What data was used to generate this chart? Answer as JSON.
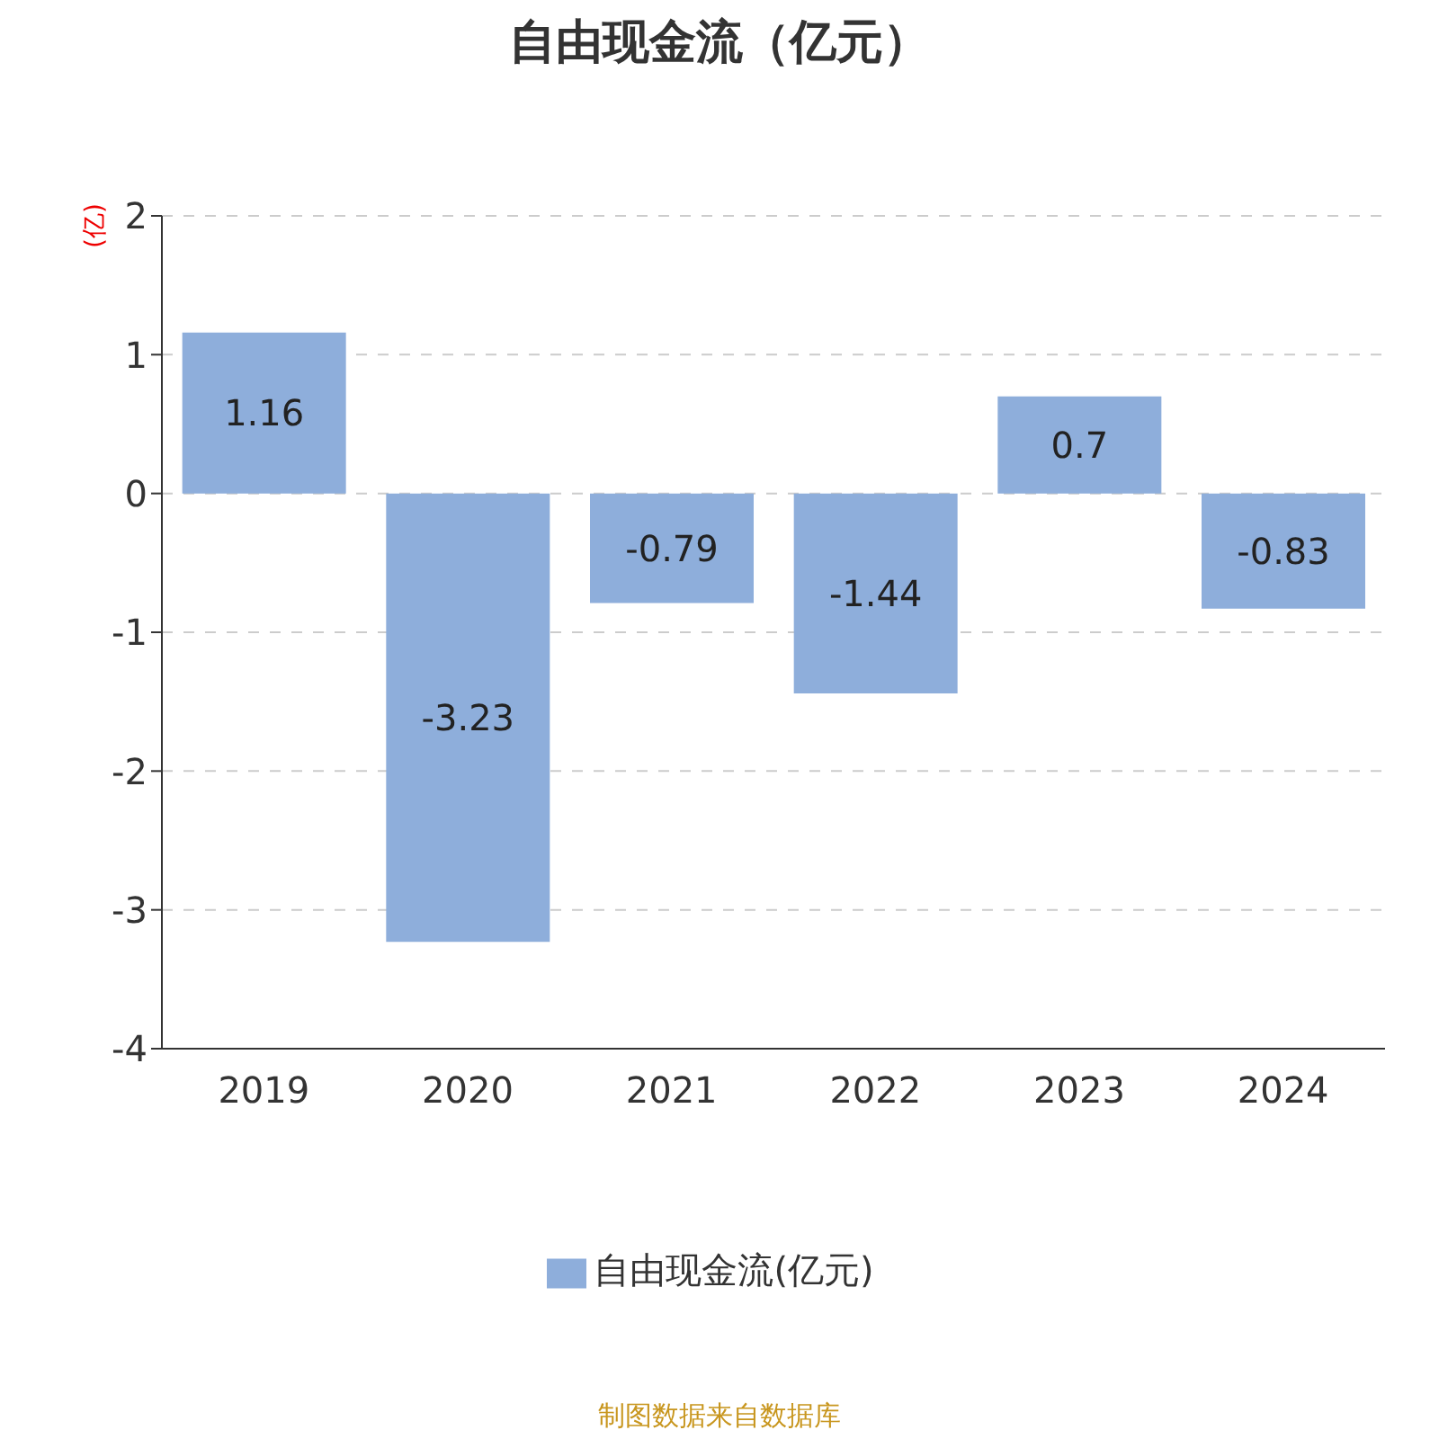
{
  "chart_data": {
    "type": "bar",
    "title": "自由现金流（亿元）",
    "ylabel": "(亿)",
    "categories": [
      "2019",
      "2020",
      "2021",
      "2022",
      "2023",
      "2024"
    ],
    "series": [
      {
        "name": "自由现金流(亿元)",
        "color": "#8eaedb",
        "values": [
          1.16,
          -3.23,
          -0.79,
          -1.44,
          0.7,
          -0.83
        ]
      }
    ],
    "ylim": [
      -4,
      2
    ],
    "yticks": [
      -4,
      -3,
      -2,
      -1,
      0,
      1,
      2
    ],
    "grid": "y",
    "data_labels": true,
    "legend": "bottom",
    "annotations": [
      "制图数据来自数据库"
    ]
  }
}
